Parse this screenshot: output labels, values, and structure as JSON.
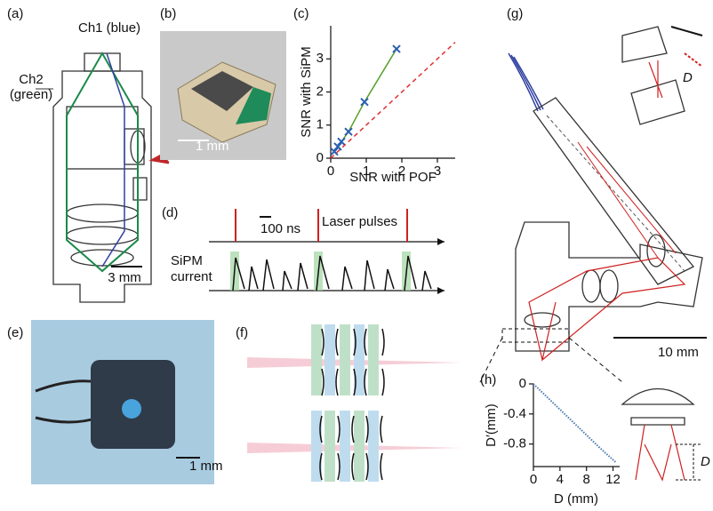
{
  "panel_labels": [
    "(a)",
    "(b)",
    "(c)",
    "(d)",
    "(e)",
    "(f)",
    "(g)",
    "(h)"
  ],
  "annotations": {
    "ch1": "Ch1 (blue)",
    "ch2": [
      "Ch2",
      "(green)"
    ],
    "scale_a": "3 mm",
    "scale_b": "1 mm",
    "time_scale": "100 ns",
    "laser": "Laser pulses",
    "sipm": [
      "SiPM",
      "current"
    ],
    "scale_e": "1 mm",
    "g_D": "D",
    "scale_g": "10 mm",
    "h_D": "D"
  },
  "chart_data": [
    {
      "type": "line",
      "x_label": "SNR with POF",
      "y_label": "SNR with SiPM",
      "xlim": [
        0,
        3.5
      ],
      "ylim": [
        0,
        4
      ],
      "xticks": [
        0,
        1,
        2,
        3
      ],
      "yticks": [
        0,
        1,
        2,
        3
      ],
      "series": [
        {
          "color": "#5aa02c",
          "marker_color": "#2a5fb0",
          "x": [
            0.1,
            0.2,
            0.3,
            0.5,
            0.95,
            1.85
          ],
          "values": [
            0.2,
            0.35,
            0.5,
            0.8,
            1.7,
            3.3
          ]
        },
        {
          "color": "#e03030",
          "dashed": true,
          "x": [
            0,
            3.5
          ],
          "values": [
            0,
            3.5
          ]
        }
      ]
    },
    {
      "type": "line",
      "x_label": "D (mm)",
      "y_label": "D′(mm)",
      "xlim": [
        0,
        13
      ],
      "ylim": [
        -1.1,
        0
      ],
      "xticks": [
        0,
        4,
        8,
        12
      ],
      "yticks": [
        0,
        -0.4,
        -0.8
      ],
      "series": [
        {
          "color": "#4a7ab0",
          "dotted": true,
          "x": [
            0,
            2,
            4,
            6,
            8,
            10,
            12.5
          ],
          "values": [
            0,
            -0.17,
            -0.34,
            -0.51,
            -0.68,
            -0.85,
            -1.05
          ]
        }
      ]
    }
  ]
}
